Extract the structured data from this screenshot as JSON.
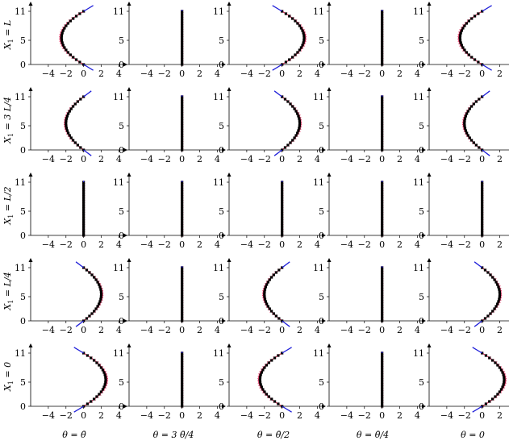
{
  "chart_data": {
    "type": "scatter",
    "layout": "5x5 grid of small multiples",
    "rows": [
      {
        "label": "X1 = L",
        "label_main": "X",
        "label_sub": "1",
        "label_rest": " = L"
      },
      {
        "label": "X1 = 3 L/4",
        "label_main": "X",
        "label_sub": "1",
        "label_rest": " = 3 L/4"
      },
      {
        "label": "X1 = L/2",
        "label_main": "X",
        "label_sub": "1",
        "label_rest": " = L/2"
      },
      {
        "label": "X1 = L/4",
        "label_main": "X",
        "label_sub": "1",
        "label_rest": " = L/4"
      },
      {
        "label": "X1 = 0",
        "label_main": "X",
        "label_sub": "1",
        "label_rest": " = 0"
      }
    ],
    "columns": [
      {
        "label": "θ = θ̄"
      },
      {
        "label": "θ = 3 θ̄/4"
      },
      {
        "label": "θ = θ̄/2"
      },
      {
        "label": "θ = θ̄/4"
      },
      {
        "label": "θ = 0"
      }
    ],
    "xlim": [
      -6,
      4.6
    ],
    "ylim": [
      0,
      11
    ],
    "xticks": [
      -4,
      -2,
      0,
      2,
      4
    ],
    "xtick_labels": [
      "−4",
      "−2",
      "0",
      "2",
      "4"
    ],
    "yticks": [
      0,
      5,
      11
    ],
    "ytick_labels": [
      "0",
      "5",
      "11"
    ],
    "grid": false,
    "series_colors": {
      "deformed": "#000000",
      "reference": "#e8265a",
      "end_segment": "#1f1fd9"
    },
    "profile_shape": "parabolic: x(y) = A * 4 * (y/11) * (1 - y/11)",
    "amplitudes": [
      [
        -2.5,
        0.0,
        2.5,
        0.0,
        -2.5
      ],
      [
        -2.0,
        0.0,
        2.0,
        0.0,
        -2.0
      ],
      [
        0.0,
        0.0,
        0.0,
        0.0,
        0.0
      ],
      [
        2.0,
        0.0,
        -2.0,
        0.0,
        2.0
      ],
      [
        2.5,
        0.0,
        -2.5,
        0.0,
        2.5
      ]
    ],
    "y_samples": [
      0,
      0.5,
      1,
      1.5,
      2,
      2.5,
      3,
      3.5,
      4,
      4.5,
      5,
      5.5,
      6,
      6.5,
      7,
      7.5,
      8,
      8.5,
      9,
      9.5,
      10,
      10.5,
      11
    ]
  }
}
